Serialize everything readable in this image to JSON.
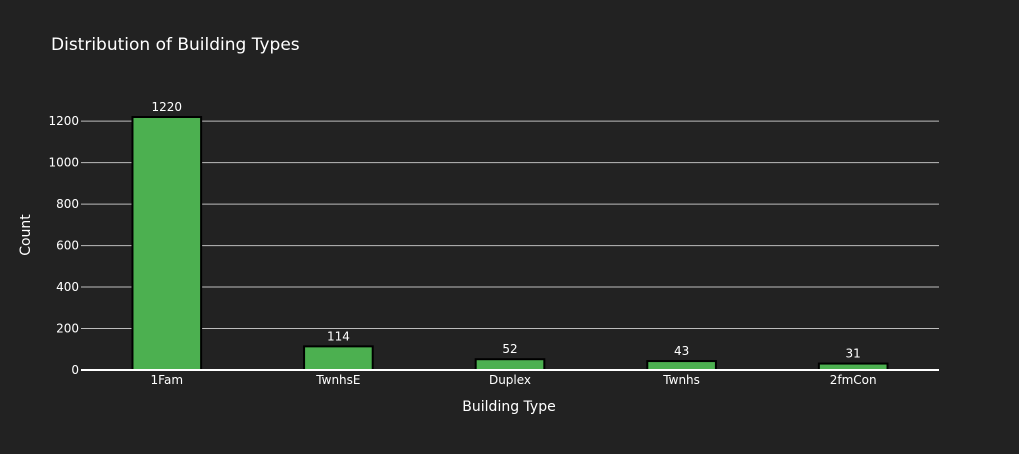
{
  "chart_data": {
    "type": "bar",
    "title": "Distribution of Building Types",
    "xlabel": "Building Type",
    "ylabel": "Count",
    "categories": [
      "1Fam",
      "TwnhsE",
      "Duplex",
      "Twnhs",
      "2fmCon"
    ],
    "values": [
      1220,
      114,
      52,
      43,
      31
    ],
    "data_labels": [
      "1220",
      "114",
      "52",
      "43",
      "31"
    ],
    "ylim": [
      0,
      1220
    ],
    "yticks": [
      0,
      200,
      400,
      600,
      800,
      1000,
      1200
    ],
    "grid": true,
    "legend": "none",
    "colors": {
      "background": "#222222",
      "bar_fill": "#4CB050",
      "bar_stroke": "#000000",
      "grid": "#bdbdbd",
      "axis_line": "#ffffff",
      "text": "#ffffff"
    }
  }
}
